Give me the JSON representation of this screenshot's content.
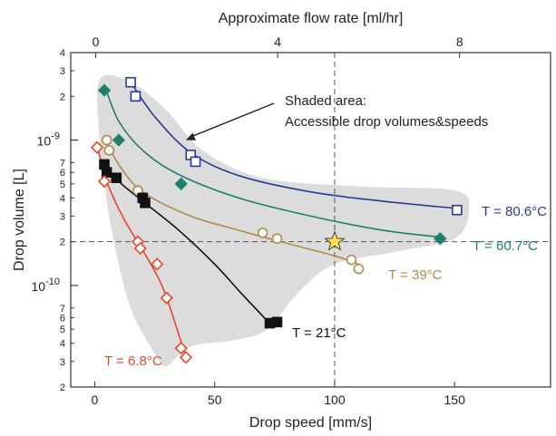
{
  "chart_data": {
    "type": "scatter",
    "title": "",
    "xlabel": "Drop speed [mm/s]",
    "ylabel": "Drop volume [L]",
    "x2label": "Approximate flow rate [ml/hr]",
    "xlim": [
      -10,
      190
    ],
    "ylim": [
      2e-11,
      4e-09
    ],
    "yscale": "log",
    "x2lim": [
      -0.55,
      10.0
    ],
    "x_ticks": [
      0,
      50,
      100,
      150
    ],
    "x_tick_labels": [
      "0",
      "50",
      "100",
      "150"
    ],
    "x2_ticks": [
      0,
      4,
      8
    ],
    "x2_tick_labels": [
      "0",
      "4",
      "8"
    ],
    "y_major_ticks": [
      1e-10,
      1e-09
    ],
    "y_major_tick_labels": [
      "10^-10",
      "10^-9"
    ],
    "y_minor_ticks": [
      2e-11,
      3e-11,
      4e-11,
      5e-11,
      6e-11,
      7e-11,
      2e-10,
      3e-10,
      4e-10,
      5e-10,
      6e-10,
      7e-10,
      2e-09,
      3e-09,
      4e-09
    ],
    "y_minor_tick_labels": [
      "2",
      "3",
      "4",
      "5",
      "6",
      "7",
      "2",
      "3",
      "4",
      "5",
      "6",
      "7",
      "2",
      "3",
      "4"
    ],
    "grid": false,
    "shaded_region": [
      [
        2,
        2.6e-09
      ],
      [
        15,
        2.5e-09
      ],
      [
        30,
        1.6e-09
      ],
      [
        45,
        8.5e-10
      ],
      [
        70,
        5.5e-10
      ],
      [
        110,
        4.8e-10
      ],
      [
        150,
        4.5e-10
      ],
      [
        156,
        3.3e-10
      ],
      [
        150,
        2.1e-10
      ],
      [
        125,
        1.7e-10
      ],
      [
        100,
        1.4e-10
      ],
      [
        85,
        9e-11
      ],
      [
        72,
        5e-11
      ],
      [
        58,
        4.2e-11
      ],
      [
        40,
        3.8e-11
      ],
      [
        30,
        2.8e-11
      ],
      [
        25,
        3.4e-11
      ],
      [
        15,
        7e-11
      ],
      [
        8,
        2e-10
      ],
      [
        4,
        5e-10
      ],
      [
        2,
        1e-09
      ]
    ],
    "reference_lines": [
      {
        "orientation": "vertical",
        "value": 100
      },
      {
        "orientation": "horizontal",
        "value": 2e-10
      }
    ],
    "star_marker": {
      "x": 100,
      "y": 2e-10
    },
    "annotation": {
      "lines": [
        "Shaded area:",
        "Accessible drop volumes&speeds"
      ],
      "arrow_to": {
        "x": 38,
        "y": 1e-09
      }
    },
    "series": [
      {
        "name": "T = 80.6°C",
        "color": "#2b3a98",
        "marker": "square-open",
        "points": [
          [
            15,
            2.5e-09
          ],
          [
            17,
            2e-09
          ],
          [
            40,
            7.9e-10
          ],
          [
            42,
            7.1e-10
          ],
          [
            151,
            3.3e-10
          ]
        ],
        "fit": [
          [
            15,
            2.5e-09
          ],
          [
            25,
            1.45e-09
          ],
          [
            40,
            8.2e-10
          ],
          [
            60,
            5.7e-10
          ],
          [
            90,
            4.4e-10
          ],
          [
            120,
            3.8e-10
          ],
          [
            150,
            3.4e-10
          ]
        ]
      },
      {
        "name": "T = 60.7°C",
        "color": "#1f7f6e",
        "marker": "diamond-filled",
        "points": [
          [
            4,
            2.2e-09
          ],
          [
            10,
            1e-09
          ],
          [
            36,
            5e-10
          ],
          [
            144,
            2.1e-10
          ]
        ],
        "fit": [
          [
            4,
            2.4e-09
          ],
          [
            10,
            1.35e-09
          ],
          [
            20,
            8.5e-10
          ],
          [
            35,
            5.8e-10
          ],
          [
            60,
            4e-10
          ],
          [
            90,
            3e-10
          ],
          [
            120,
            2.4e-10
          ],
          [
            144,
            2.15e-10
          ]
        ]
      },
      {
        "name": "T = 39°C",
        "color": "#b08a4a",
        "marker": "circle-open",
        "points": [
          [
            5,
            1e-09
          ],
          [
            6,
            8.5e-10
          ],
          [
            18,
            4.5e-10
          ],
          [
            70,
            2.3e-10
          ],
          [
            76,
            2.1e-10
          ],
          [
            107,
            1.5e-10
          ],
          [
            110,
            1.3e-10
          ]
        ],
        "fit": [
          [
            4,
            1.05e-09
          ],
          [
            10,
            6.8e-10
          ],
          [
            20,
            4.4e-10
          ],
          [
            40,
            3e-10
          ],
          [
            60,
            2.4e-10
          ],
          [
            80,
            1.95e-10
          ],
          [
            100,
            1.6e-10
          ],
          [
            110,
            1.4e-10
          ]
        ]
      },
      {
        "name": "T = 21°C",
        "color": "#111111",
        "marker": "square-filled",
        "points": [
          [
            4,
            6.8e-10
          ],
          [
            5,
            6e-10
          ],
          [
            9,
            5.5e-10
          ],
          [
            20,
            4e-10
          ],
          [
            21,
            3.7e-10
          ],
          [
            73,
            5.5e-11
          ],
          [
            76,
            5.6e-11
          ]
        ],
        "fit": [
          [
            4,
            6.9e-10
          ],
          [
            10,
            5.2e-10
          ],
          [
            20,
            3.8e-10
          ],
          [
            35,
            2.4e-10
          ],
          [
            50,
            1.4e-10
          ],
          [
            62,
            8.5e-11
          ],
          [
            72,
            5.7e-11
          ]
        ]
      },
      {
        "name": "T = 6.8°C",
        "color": "#e8452b",
        "marker": "diamond-open",
        "points": [
          [
            1,
            8.9e-10
          ],
          [
            4,
            5.2e-10
          ],
          [
            18,
            2e-10
          ],
          [
            19,
            1.8e-10
          ],
          [
            26,
            1.4e-10
          ],
          [
            30,
            8.2e-11
          ],
          [
            36,
            3.7e-11
          ],
          [
            38,
            3.2e-11
          ]
        ],
        "fit": [
          [
            1,
            9.2e-10
          ],
          [
            5,
            5.2e-10
          ],
          [
            12,
            2.9e-10
          ],
          [
            20,
            1.75e-10
          ],
          [
            28,
            1e-10
          ],
          [
            34,
            5.2e-11
          ],
          [
            38,
            3.2e-11
          ]
        ]
      }
    ]
  }
}
